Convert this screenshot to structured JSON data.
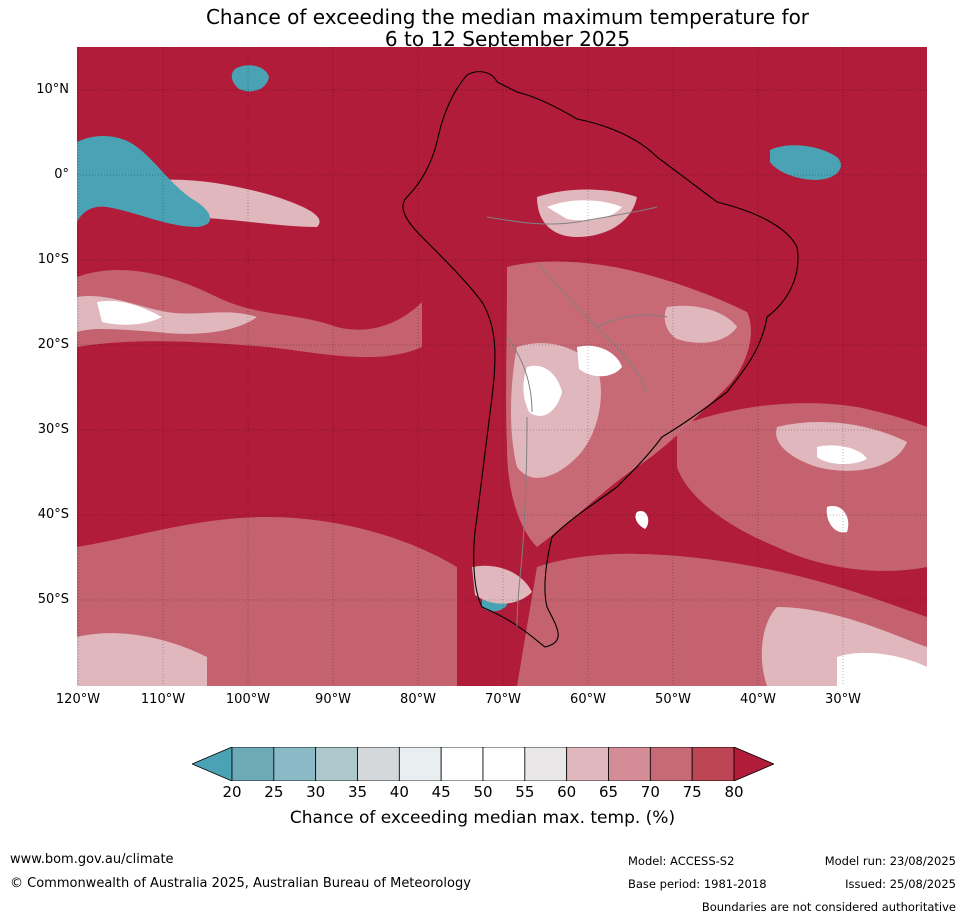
{
  "title_line1": "Chance of exceeding the median maximum temperature for",
  "title_line2": "6 to 12 September 2025",
  "lat_labels": [
    "10°N",
    "0°",
    "10°S",
    "20°S",
    "30°S",
    "40°S",
    "50°S"
  ],
  "lon_labels": [
    "120°W",
    "110°W",
    "100°W",
    "90°W",
    "80°W",
    "70°W",
    "60°W",
    "50°W",
    "40°W",
    "30°W"
  ],
  "colorbar": {
    "ticks": [
      "20",
      "25",
      "30",
      "35",
      "40",
      "45",
      "50",
      "55",
      "60",
      "65",
      "70",
      "75",
      "80"
    ],
    "colors": [
      "#4aa3b4",
      "#6faab8",
      "#8bbac6",
      "#aec7cd",
      "#d5d8da",
      "#e9eef0",
      "#ffffff",
      "#ffffff",
      "#eae7e8",
      "#e0b7bd",
      "#d48c96",
      "#c76a76",
      "#bd4654",
      "#b01c3a"
    ],
    "label": "Chance of exceeding median max. temp. (%)"
  },
  "map_colors": {
    "dominant": "#b01c3a",
    "mid_red": "#c76a76",
    "light_pink": "#e0b7bd",
    "white": "#ffffff",
    "teal": "#4aa3b4"
  },
  "footer": {
    "url": "www.bom.gov.au/climate",
    "copyright": "© Commonwealth of Australia 2025, Australian Bureau of Meteorology",
    "model": "Model: ACCESS-S2",
    "base_period": "Base period: 1981-2018",
    "model_run": "Model run: 23/08/2025",
    "issued": "Issued: 25/08/2025",
    "disclaimer": "Boundaries are not considered authoritative"
  }
}
